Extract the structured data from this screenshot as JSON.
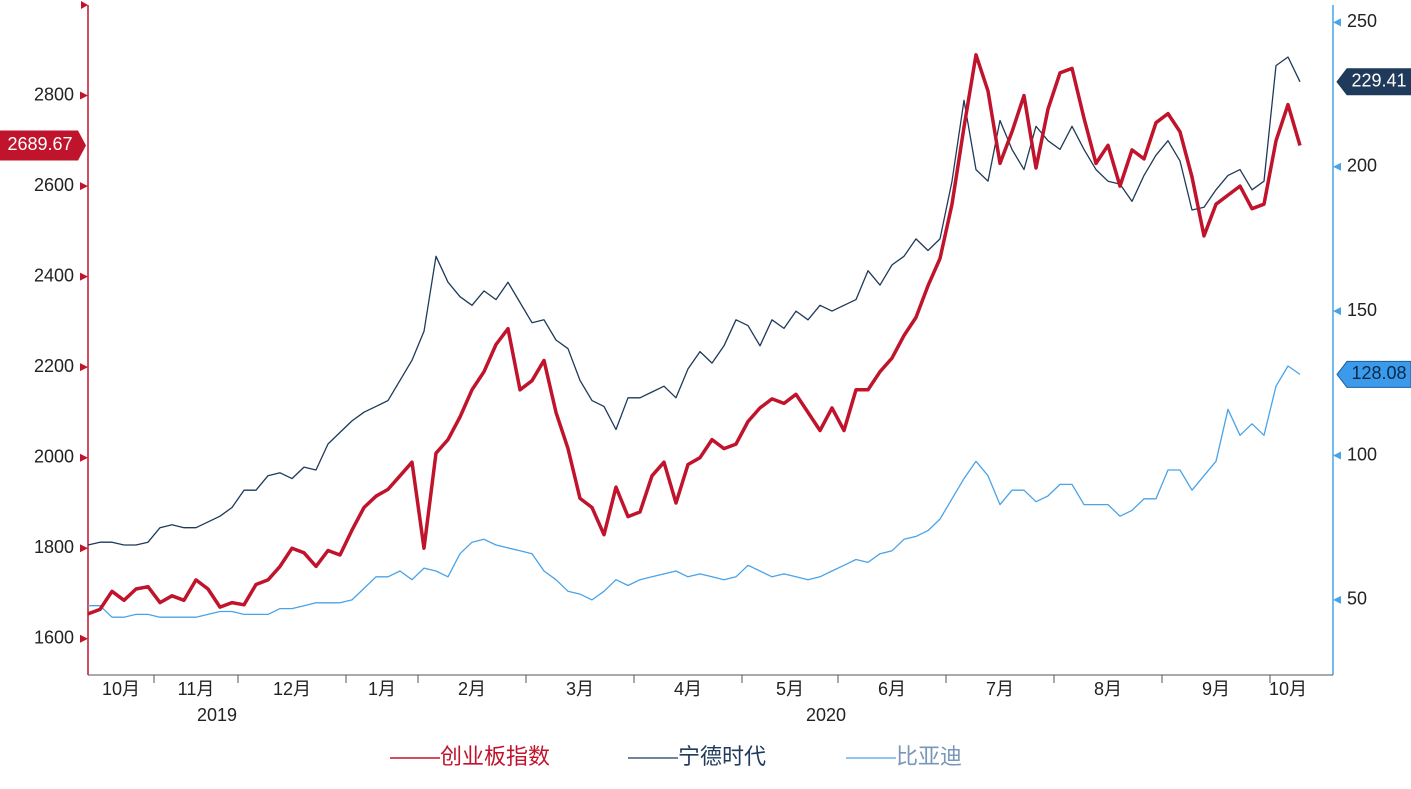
{
  "chart_data": {
    "type": "line",
    "categories": [
      "10月",
      "11月",
      "12月",
      "1月",
      "2月",
      "3月",
      "4月",
      "5月",
      "6月",
      "7月",
      "8月",
      "9月",
      "10月"
    ],
    "year_labels": [
      "2019",
      "2020"
    ],
    "ylim": [
      1520,
      3000
    ],
    "yticks": [
      1600,
      1800,
      2000,
      2200,
      2400,
      2600,
      2800
    ],
    "y2lim": [
      24,
      256
    ],
    "y2ticks": [
      50,
      100,
      150,
      200,
      250
    ],
    "series": [
      {
        "name": "创业板指数",
        "color": "#c0142c",
        "axis": "y",
        "values": [
          [
            1655,
            1665,
            1705,
            1685,
            1710,
            1715
          ],
          [
            1680,
            1695,
            1685,
            1730,
            1710,
            1670,
            1680
          ],
          [
            1675,
            1720,
            1730,
            1760,
            1800,
            1790,
            1760,
            1795,
            1785
          ],
          [
            1840,
            1890,
            1915,
            1930,
            1960,
            1990
          ],
          [
            1800,
            2010,
            2040,
            2090,
            2150,
            2190,
            2250,
            2285,
            2150
          ],
          [
            2170,
            2215,
            2100,
            2020,
            1910,
            1890,
            1830,
            1935,
            1870
          ],
          [
            1880,
            1960,
            1990,
            1900,
            1985,
            2000,
            2040,
            2020,
            2030
          ],
          [
            2080,
            2110,
            2130,
            2120,
            2140,
            2100,
            2060,
            2110
          ],
          [
            2060,
            2150,
            2150,
            2190,
            2220,
            2270,
            2310,
            2380,
            2440
          ],
          [
            2560,
            2730,
            2890,
            2810,
            2650,
            2720,
            2800,
            2640,
            2770
          ],
          [
            2850,
            2860,
            2750,
            2650,
            2690,
            2600,
            2680,
            2660,
            2740
          ],
          [
            2760,
            2720,
            2620,
            2490,
            2560,
            2580,
            2600,
            2550,
            2560
          ],
          [
            2700,
            2780,
            2689.67
          ]
        ]
      },
      {
        "name": "宁德时代",
        "color": "#1f3a5a",
        "axis": "y2",
        "values": [
          [
            69,
            70,
            70,
            69,
            69,
            70
          ],
          [
            75,
            76,
            75,
            75,
            77,
            79,
            82
          ],
          [
            88,
            88,
            93,
            94,
            92,
            96,
            95,
            104,
            108
          ],
          [
            112,
            115,
            117,
            119,
            126,
            133
          ],
          [
            143,
            169,
            160,
            155,
            152,
            157,
            154,
            160,
            153
          ],
          [
            146,
            147,
            140,
            137,
            126,
            119,
            117,
            109,
            120
          ],
          [
            120,
            122,
            124,
            120,
            130,
            136,
            132,
            138,
            147
          ],
          [
            145,
            138,
            147,
            144,
            150,
            147,
            152,
            150
          ],
          [
            152,
            154,
            164,
            159,
            166,
            169,
            175,
            171,
            175
          ],
          [
            195,
            223,
            199,
            195,
            216,
            206,
            199,
            214,
            209
          ],
          [
            206,
            214,
            206,
            199,
            195,
            194,
            188,
            197,
            204
          ],
          [
            209,
            202,
            185,
            186,
            192,
            197,
            199,
            192,
            195
          ],
          [
            235,
            238,
            229.41
          ]
        ]
      },
      {
        "name": "比亚迪",
        "color": "#4aa3e8",
        "axis": "y2",
        "values": [
          [
            48,
            48,
            44,
            44,
            45,
            45
          ],
          [
            44,
            44,
            44,
            44,
            45,
            46,
            46
          ],
          [
            45,
            45,
            45,
            47,
            47,
            48,
            49,
            49,
            49
          ],
          [
            50,
            54,
            58,
            58,
            60,
            57
          ],
          [
            61,
            60,
            58,
            66,
            70,
            71,
            69,
            68,
            67
          ],
          [
            66,
            60,
            57,
            53,
            52,
            50,
            53,
            57,
            55
          ],
          [
            57,
            58,
            59,
            60,
            58,
            59,
            58,
            57,
            58
          ],
          [
            62,
            60,
            58,
            59,
            58,
            57,
            58,
            60
          ],
          [
            62,
            64,
            63,
            66,
            67,
            71,
            72,
            74,
            78
          ],
          [
            85,
            92,
            98,
            93,
            83,
            88,
            88,
            84,
            86
          ],
          [
            90,
            90,
            83,
            83,
            83,
            79,
            81,
            85,
            85
          ],
          [
            95,
            95,
            88,
            93,
            98,
            116,
            107,
            111,
            107
          ],
          [
            124,
            131,
            128.08
          ]
        ]
      }
    ]
  }
}
